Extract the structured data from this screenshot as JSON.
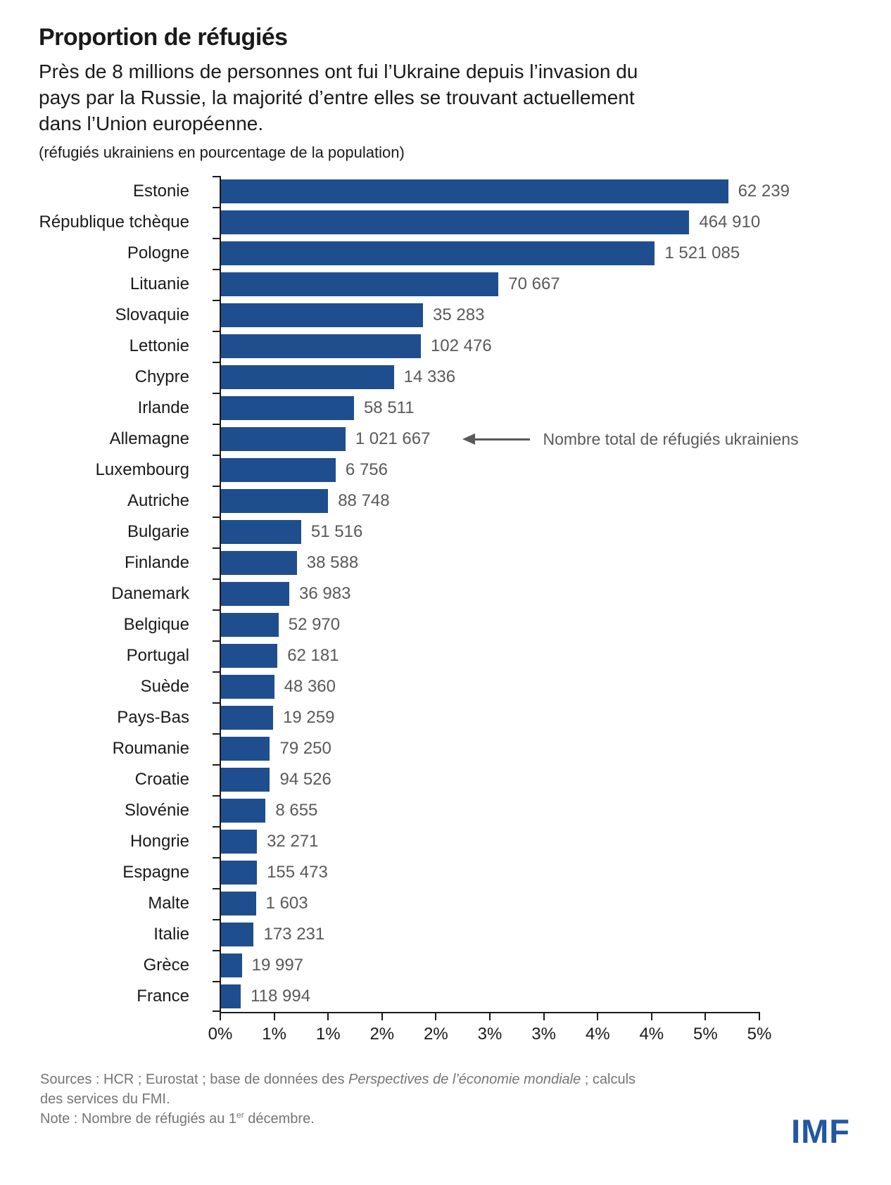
{
  "colors": {
    "bar": "#1F4E8F",
    "axis": "#1a1a1a",
    "value_label": "#595959",
    "annotation": "#595959",
    "footer": "#757575",
    "logo": "#2356A4"
  },
  "header": {
    "title": "Proportion de réfugiés",
    "subtitle_lines": [
      "Près de 8 millions de personnes ont fui l’Ukraine depuis l’invasion du",
      "pays par la Russie, la majorité d’entre elles se trouvant actuellement",
      "dans l’Union européenne."
    ],
    "unit_note": "(réfugiés ukrainiens en pourcentage de la population)"
  },
  "annotation": {
    "text": "Nombre total de réfugiés ukrainiens",
    "points_to": "Allemagne"
  },
  "chart_data": {
    "type": "bar",
    "orientation": "horizontal",
    "title": "Proportion de réfugiés",
    "xlabel": "réfugiés ukrainiens en pourcentage de la population",
    "xlim": [
      0,
      5
    ],
    "x_tick_step": 0.5,
    "x_tick_labels": [
      "0%",
      "1%",
      "1%",
      "2%",
      "2%",
      "3%",
      "3%",
      "4%",
      "4%",
      "5%",
      "5%"
    ],
    "grid": false,
    "legend": false,
    "categories": [
      "Estonie",
      "République tchèque",
      "Pologne",
      "Lituanie",
      "Slovaquie",
      "Lettonie",
      "Chypre",
      "Irlande",
      "Allemagne",
      "Luxembourg",
      "Autriche",
      "Bulgarie",
      "Finlande",
      "Danemark",
      "Belgique",
      "Portugal",
      "Suède",
      "Pays-Bas",
      "Roumanie",
      "Croatie",
      "Slovénie",
      "Hongrie",
      "Espagne",
      "Malte",
      "Italie",
      "Grèce",
      "France"
    ],
    "values_pct_of_population": [
      4.71,
      4.35,
      4.03,
      2.58,
      1.88,
      1.86,
      1.61,
      1.24,
      1.16,
      1.07,
      1.0,
      0.75,
      0.71,
      0.64,
      0.54,
      0.53,
      0.5,
      0.49,
      0.46,
      0.46,
      0.42,
      0.34,
      0.34,
      0.33,
      0.31,
      0.2,
      0.19
    ],
    "bar_labels_total_refugees": [
      "62 239",
      "464 910",
      "1 521 085",
      "70 667",
      "35 283",
      "102 476",
      "14 336",
      "58 511",
      "1 021 667",
      "6 756",
      "88 748",
      "51 516",
      "38 588",
      "36 983",
      "52 970",
      "62 181",
      "48 360",
      "19 259",
      "79 250",
      "94 526",
      "8 655",
      "32 271",
      "155 473",
      "1 603",
      "173 231",
      "19 997",
      "118 994"
    ]
  },
  "footer": {
    "sources_line1_prefix": "Sources : HCR ; Eurostat ; base de données des ",
    "sources_line1_italic": "Perspectives de l’économie mondiale",
    "sources_line1_suffix": " ; calculs",
    "sources_line2": "des services du FMI.",
    "note_prefix": "Note : Nombre de réfugiés au 1",
    "note_superscript": "er",
    "note_suffix": " décembre.",
    "logo_text": "IMF"
  }
}
